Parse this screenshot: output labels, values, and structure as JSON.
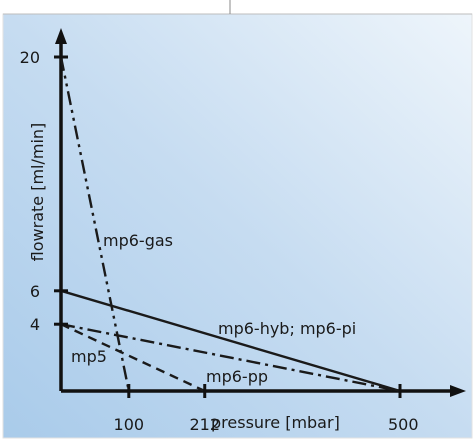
{
  "chart_data": {
    "type": "line",
    "title": "",
    "xlabel": "pressure  [mbar]",
    "ylabel": "flowrate  [ml/min]",
    "xlim": [
      0,
      500
    ],
    "ylim": [
      0,
      20
    ],
    "grid": false,
    "x_tick_labels": [
      "100",
      "212",
      "500"
    ],
    "x_tick_values": [
      100,
      212,
      500
    ],
    "y_tick_labels": [
      "20",
      "6",
      "4"
    ],
    "y_tick_values": [
      20,
      6,
      4
    ],
    "background_gradient": [
      "#a9cbea",
      "#c6dcf1",
      "#eef5fb"
    ],
    "series": [
      {
        "name": "mp6-gas",
        "dash": "dash-dot-dot",
        "x": [
          0,
          100
        ],
        "y": [
          20,
          0
        ]
      },
      {
        "name": "mp6-hyb; mp6-pi",
        "dash": "solid",
        "x": [
          0,
          500
        ],
        "y": [
          6,
          0
        ]
      },
      {
        "name": "mp6-pp",
        "dash": "dash-dot",
        "x": [
          0,
          500
        ],
        "y": [
          4,
          0
        ]
      },
      {
        "name": "mp5",
        "dash": "dash",
        "x": [
          0,
          212
        ],
        "y": [
          4,
          0
        ]
      }
    ]
  }
}
